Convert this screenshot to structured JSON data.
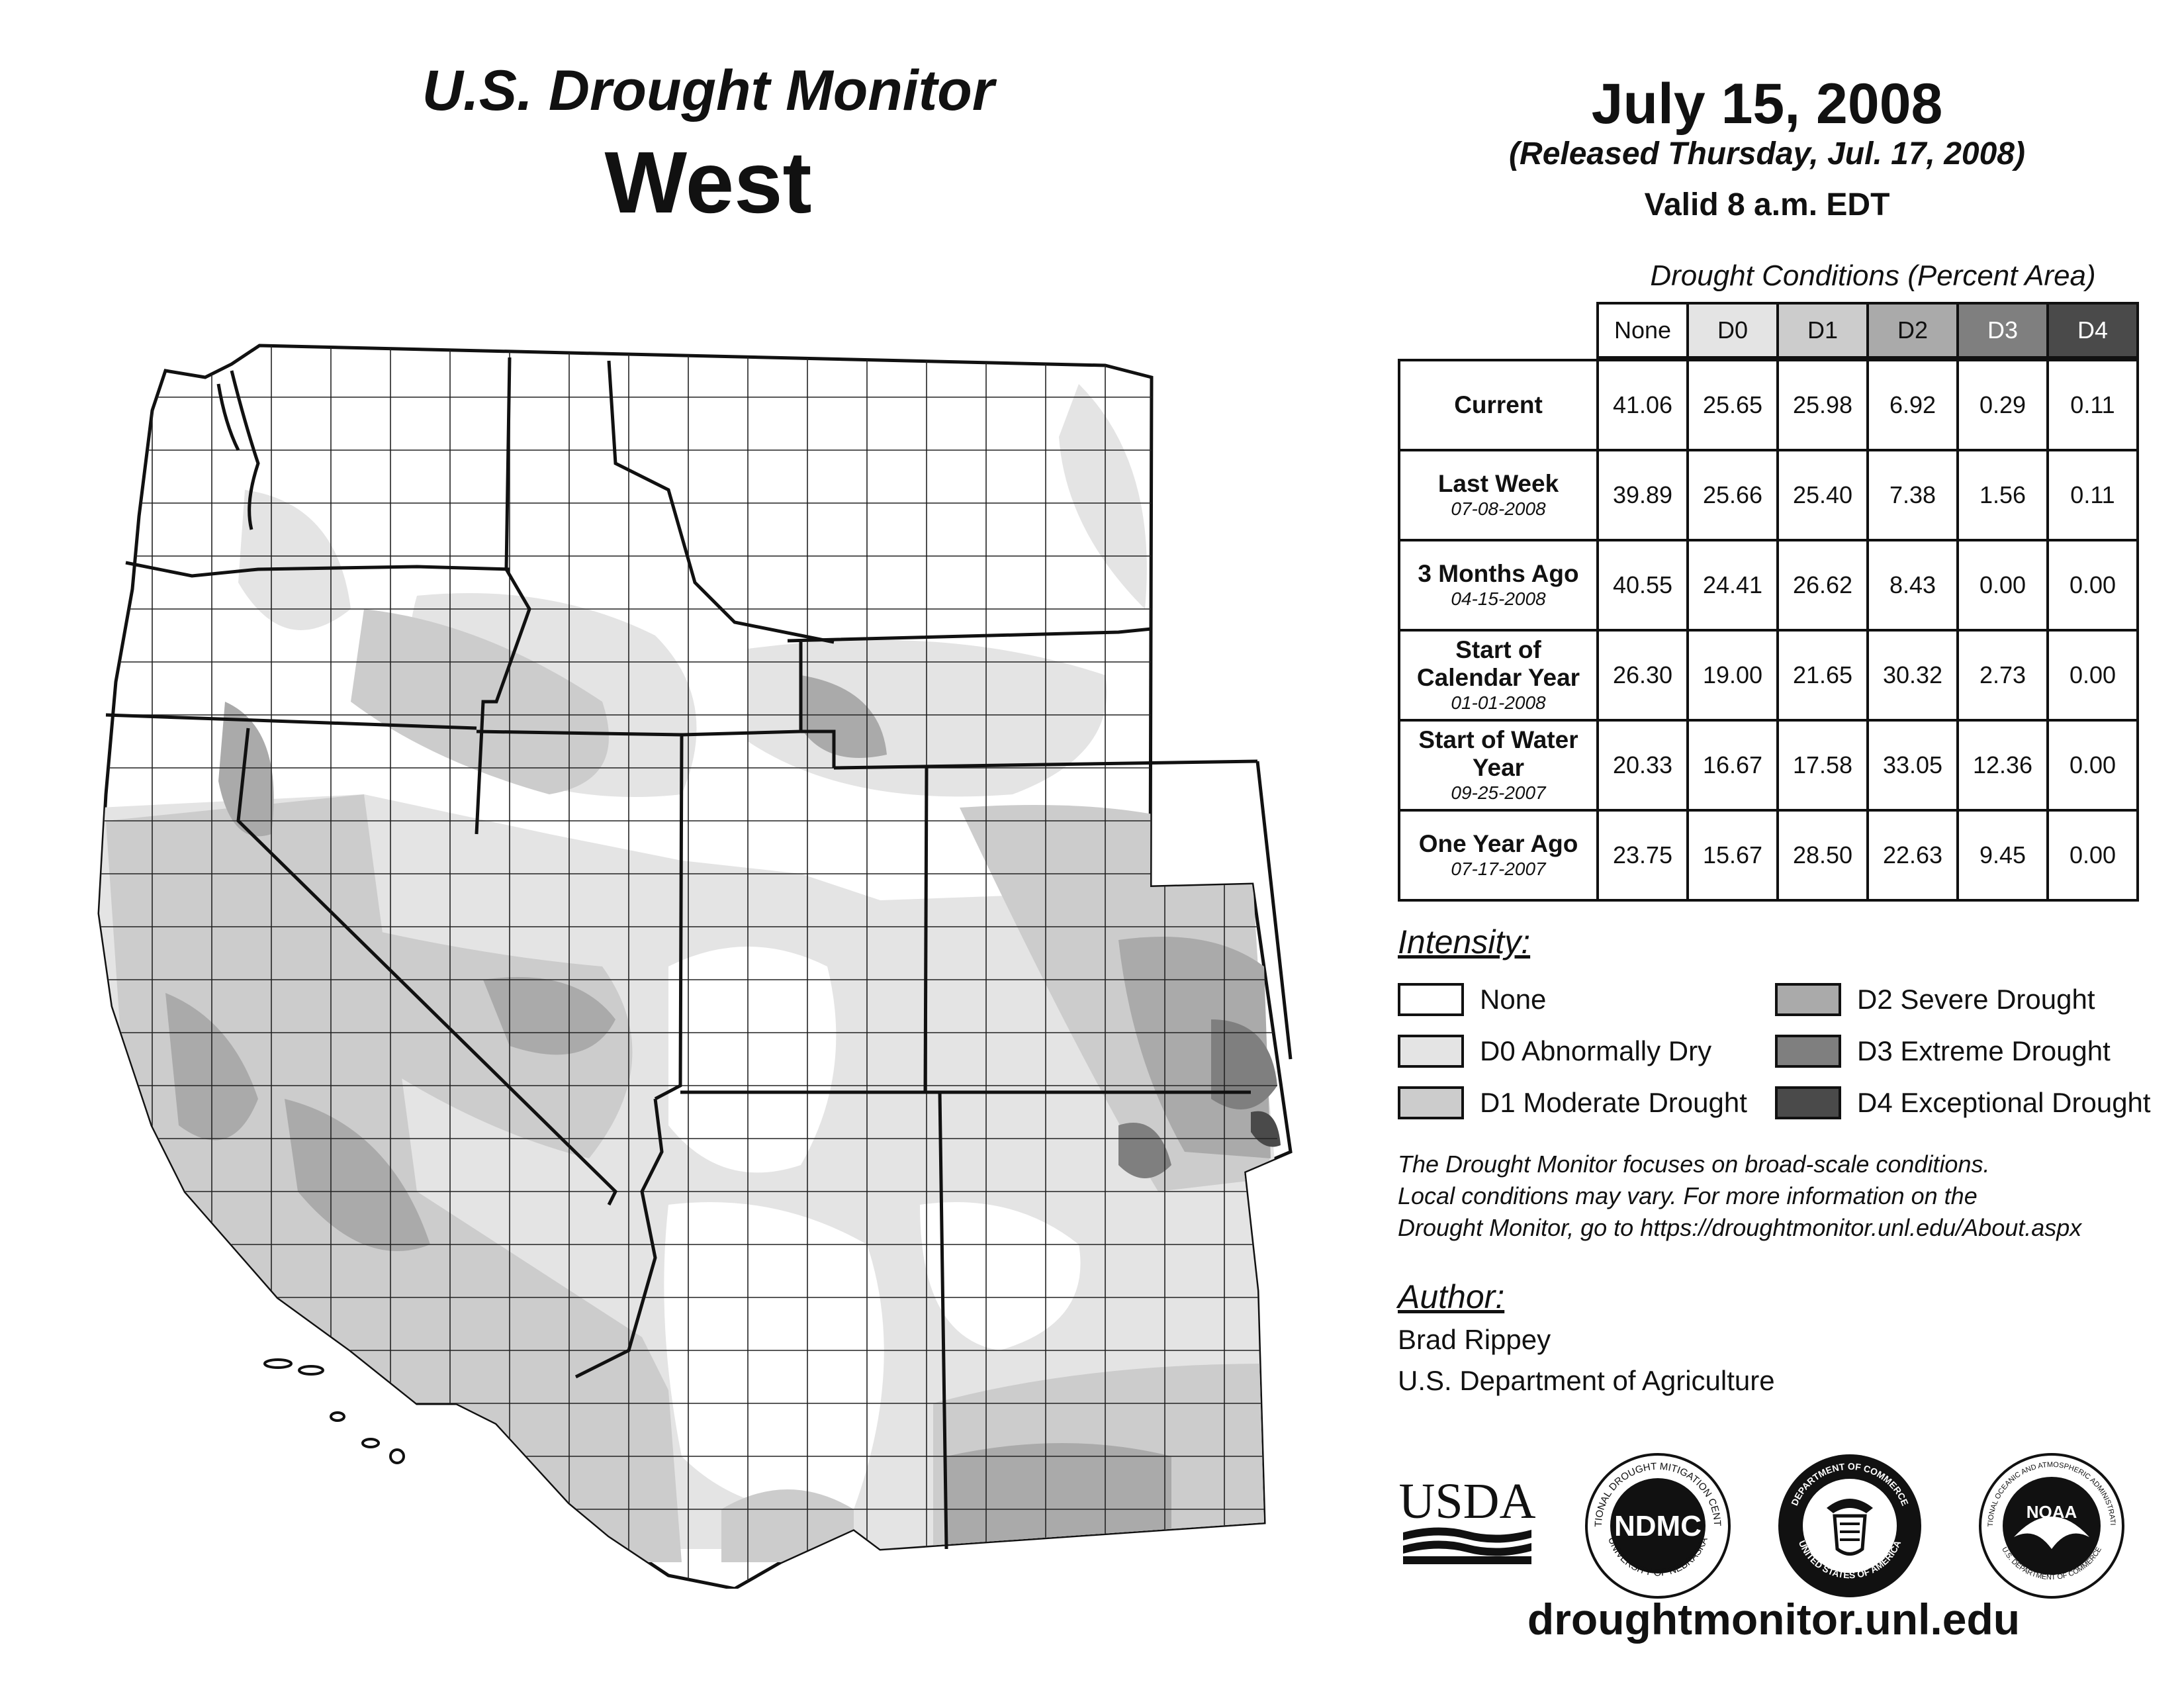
{
  "header": {
    "title": "U.S. Drought Monitor",
    "region": "West",
    "date": "July 15, 2008",
    "released": "(Released Thursday, Jul. 17, 2008)",
    "valid": "Valid 8 a.m. EDT"
  },
  "table": {
    "caption": "Drought Conditions (Percent Area)",
    "columns": [
      "None",
      "D0",
      "D1",
      "D2",
      "D3",
      "D4"
    ],
    "column_colors": [
      "#ffffff",
      "#e4e4e4",
      "#cccccc",
      "#aaaaaa",
      "#7f7f7f",
      "#4a4a4a"
    ],
    "rows": [
      {
        "label": "Current",
        "sublabel": "",
        "values": [
          "41.06",
          "25.65",
          "25.98",
          "6.92",
          "0.29",
          "0.11"
        ]
      },
      {
        "label": "Last Week",
        "sublabel": "07-08-2008",
        "values": [
          "39.89",
          "25.66",
          "25.40",
          "7.38",
          "1.56",
          "0.11"
        ]
      },
      {
        "label": "3 Months Ago",
        "sublabel": "04-15-2008",
        "values": [
          "40.55",
          "24.41",
          "26.62",
          "8.43",
          "0.00",
          "0.00"
        ]
      },
      {
        "label": "Start of Calendar Year",
        "sublabel": "01-01-2008",
        "values": [
          "26.30",
          "19.00",
          "21.65",
          "30.32",
          "2.73",
          "0.00"
        ]
      },
      {
        "label": "Start of Water Year",
        "sublabel": "09-25-2007",
        "values": [
          "20.33",
          "16.67",
          "17.58",
          "33.05",
          "12.36",
          "0.00"
        ]
      },
      {
        "label": "One Year Ago",
        "sublabel": "07-17-2007",
        "values": [
          "23.75",
          "15.67",
          "28.50",
          "22.63",
          "9.45",
          "0.00"
        ]
      }
    ]
  },
  "legend": {
    "title": "Intensity:",
    "items": [
      {
        "label": "None",
        "color": "#ffffff"
      },
      {
        "label": "D0 Abnormally Dry",
        "color": "#e4e4e4"
      },
      {
        "label": "D1 Moderate Drought",
        "color": "#cccccc"
      },
      {
        "label": "D2 Severe Drought",
        "color": "#aaaaaa"
      },
      {
        "label": "D3 Extreme Drought",
        "color": "#7f7f7f"
      },
      {
        "label": "D4 Exceptional Drought",
        "color": "#4a4a4a"
      }
    ]
  },
  "note": {
    "line1": "The Drought Monitor focuses on broad-scale conditions.",
    "line2": "Local conditions may vary. For more information on the",
    "line3": "Drought Monitor, go to https://droughtmonitor.unl.edu/About.aspx"
  },
  "author": {
    "title": "Author:",
    "name": "Brad Rippey",
    "org": "U.S. Department of Agriculture"
  },
  "logos": {
    "usda": "USDA",
    "ndmc": "NDMC",
    "ndmc_ring_top": "NATIONAL DROUGHT MITIGATION CENTER",
    "ndmc_ring_bottom": "UNIVERSITY OF NEBRASKA",
    "doc_ring_top": "DEPARTMENT OF COMMERCE",
    "doc_ring_bottom": "UNITED STATES OF AMERICA",
    "noaa": "NOAA",
    "noaa_ring_top": "NATIONAL OCEANIC AND ATMOSPHERIC ADMINISTRATION",
    "noaa_ring_bottom": "U.S. DEPARTMENT OF COMMERCE"
  },
  "website": "droughtmonitor.unl.edu"
}
